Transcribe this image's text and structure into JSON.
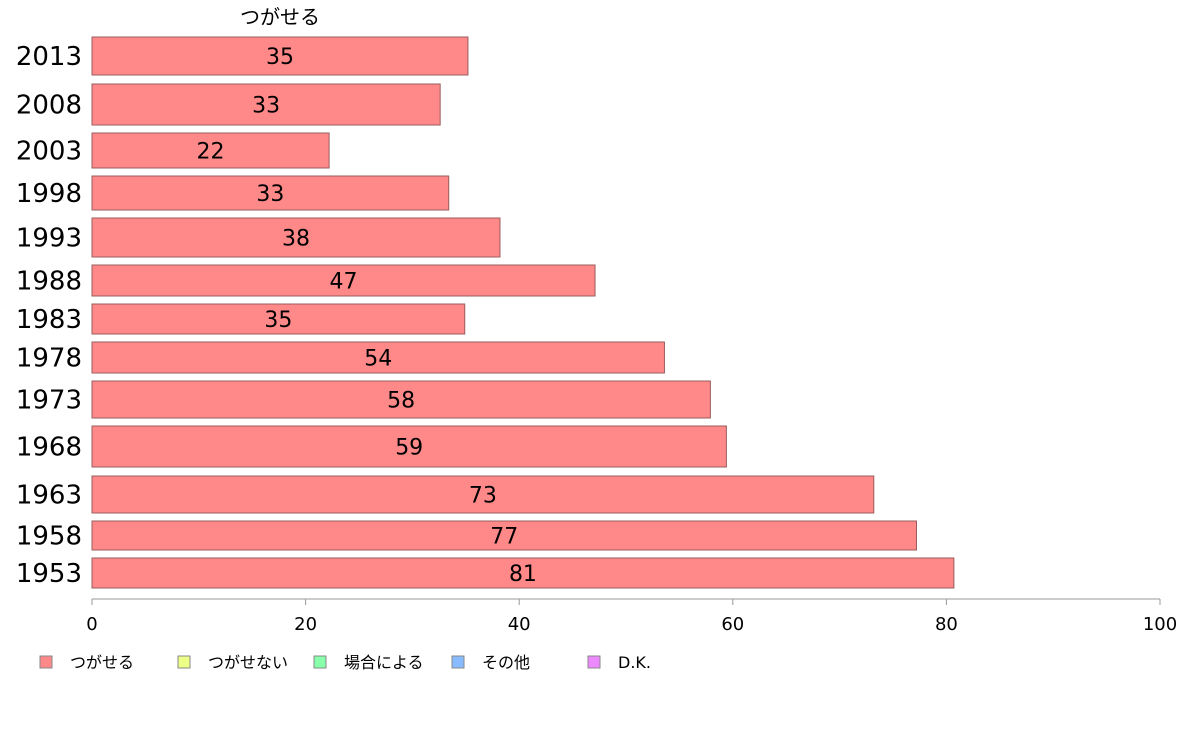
{
  "chart_data": {
    "type": "bar",
    "orientation": "horizontal",
    "series_title": "つがせる",
    "categories": [
      "2013",
      "2008",
      "2003",
      "1998",
      "1993",
      "1988",
      "1983",
      "1978",
      "1973",
      "1968",
      "1963",
      "1958",
      "1953"
    ],
    "series": [
      {
        "name": "つがせる",
        "color": "#ff8888",
        "values": [
          35.2,
          32.6,
          22.2,
          33.4,
          38.2,
          47.1,
          34.9,
          53.6,
          57.9,
          59.4,
          73.2,
          77.2,
          80.7
        ],
        "labels": [
          "35",
          "33",
          "22",
          "33",
          "38",
          "47",
          "35",
          "54",
          "58",
          "59",
          "73",
          "77",
          "81"
        ]
      }
    ],
    "xlim": [
      0,
      100
    ],
    "xticks": [
      0,
      20,
      40,
      60,
      80,
      100
    ],
    "grid": false,
    "legend_position": "bottom",
    "legend": [
      {
        "name": "つがせる",
        "color": "#ff8888"
      },
      {
        "name": "つがせない",
        "color": "#eeff88"
      },
      {
        "name": "場合による",
        "color": "#88ffaa"
      },
      {
        "name": "その他",
        "color": "#88bbff"
      },
      {
        "name": "D.K.",
        "color": "#ee88ff"
      }
    ]
  }
}
